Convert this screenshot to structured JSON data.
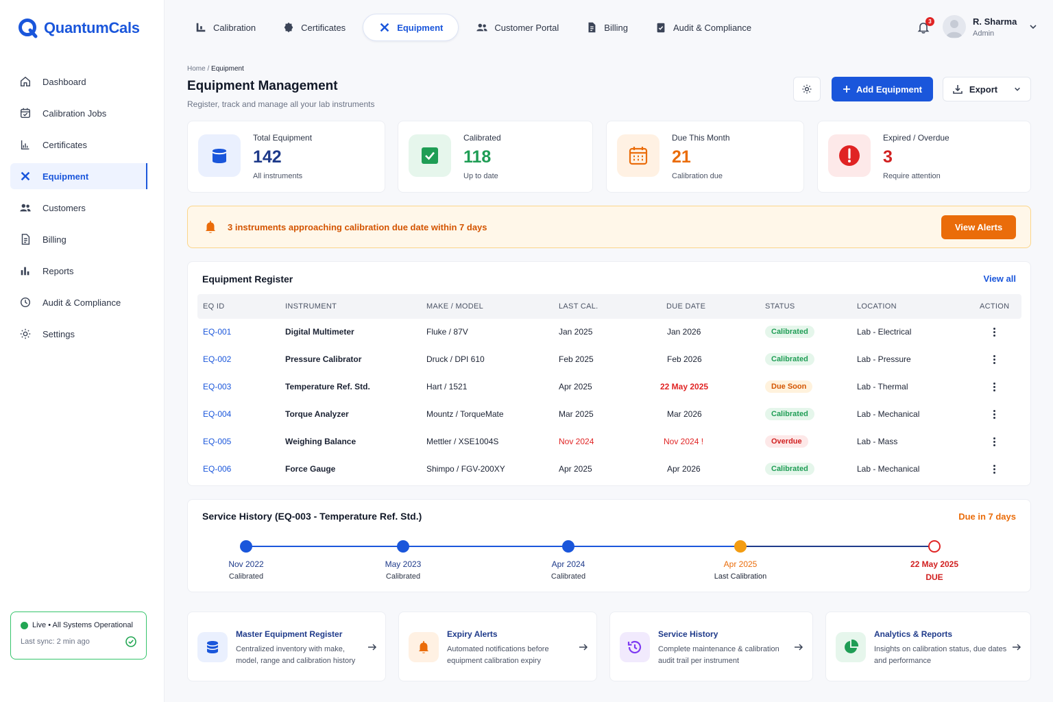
{
  "brand": {
    "name": "QuantumCals",
    "color": "#1a56db"
  },
  "sidebar": {
    "items": [
      {
        "label": "Dashboard",
        "icon": "home-icon"
      },
      {
        "label": "Calibration Jobs",
        "icon": "calendar-check-icon"
      },
      {
        "label": "Certificates",
        "icon": "certificate-icon"
      },
      {
        "label": "Equipment",
        "icon": "tools-icon",
        "active": true
      },
      {
        "label": "Customers",
        "icon": "users-icon"
      },
      {
        "label": "Billing",
        "icon": "invoice-icon"
      },
      {
        "label": "Reports",
        "icon": "bar-chart-icon"
      },
      {
        "label": "Audit & Compliance",
        "icon": "shield-icon"
      },
      {
        "label": "Settings",
        "icon": "gear-icon"
      }
    ],
    "status": {
      "text": "Live • All Systems Operational",
      "sync": "Last sync: 2 min ago"
    }
  },
  "topnav": {
    "tabs": [
      {
        "label": "Calibration",
        "icon": "gauge-icon"
      },
      {
        "label": "Certificates",
        "icon": "badge-icon"
      },
      {
        "label": "Equipment",
        "icon": "tools-icon",
        "active": true
      },
      {
        "label": "Customer Portal",
        "icon": "users-icon"
      },
      {
        "label": "Billing",
        "icon": "invoice-icon"
      },
      {
        "label": "Audit & Compliance",
        "icon": "clipboard-check-icon"
      }
    ],
    "notifications": "3",
    "user": {
      "name": "R. Sharma",
      "role": "Admin"
    }
  },
  "header": {
    "breadcrumb_home": "Home",
    "breadcrumb_sep": "/",
    "breadcrumb_current": "Equipment",
    "title": "Equipment Management",
    "subtitle": "Register, track and manage all your lab instruments",
    "add_label": "Add Equipment",
    "export_label": "Export"
  },
  "stats": [
    {
      "label": "Total Equipment",
      "value": "142",
      "sub": "All instruments",
      "color": "#1e3a8a"
    },
    {
      "label": "Calibrated",
      "value": "118",
      "sub": "Up to date",
      "color": "#1f9d55"
    },
    {
      "label": "Due This Month",
      "value": "21",
      "sub": "Calibration due",
      "color": "#ea6c0a"
    },
    {
      "label": "Expired / Overdue",
      "value": "3",
      "sub": "Require attention",
      "color": "#d12020"
    }
  ],
  "alert": {
    "text": "3 instruments approaching calibration due date within 7 days",
    "button": "View Alerts"
  },
  "register": {
    "title": "Equipment Register",
    "view_all": "View all",
    "columns": [
      "EQ ID",
      "INSTRUMENT",
      "MAKE / MODEL",
      "LAST CAL.",
      "DUE DATE",
      "STATUS",
      "LOCATION",
      "ACTION"
    ],
    "rows": [
      {
        "id": "EQ-001",
        "instrument": "Digital Multimeter",
        "make": "Fluke / 87V",
        "last": "Jan 2025",
        "due": "Jan 2026",
        "status": "Calibrated",
        "location": "Lab - Electrical"
      },
      {
        "id": "EQ-002",
        "instrument": "Pressure Calibrator",
        "make": "Druck / DPI 610",
        "last": "Feb 2025",
        "due": "Feb 2026",
        "status": "Calibrated",
        "location": "Lab - Pressure"
      },
      {
        "id": "EQ-003",
        "instrument": "Temperature Ref. Std.",
        "make": "Hart / 1521",
        "last": "Apr 2025",
        "due": "22 May 2025",
        "status": "Due Soon",
        "location": "Lab - Thermal"
      },
      {
        "id": "EQ-004",
        "instrument": "Torque Analyzer",
        "make": "Mountz / TorqueMate",
        "last": "Mar 2025",
        "due": "Mar 2026",
        "status": "Calibrated",
        "location": "Lab - Mechanical"
      },
      {
        "id": "EQ-005",
        "instrument": "Weighing Balance",
        "make": "Mettler / XSE1004S",
        "last": "Nov 2024",
        "due": "Nov 2024 !",
        "status": "Overdue",
        "location": "Lab - Mass"
      },
      {
        "id": "EQ-006",
        "instrument": "Force Gauge",
        "make": "Shimpo / FGV-200XY",
        "last": "Apr 2025",
        "due": "Apr 2026",
        "status": "Calibrated",
        "location": "Lab - Mechanical"
      }
    ]
  },
  "history": {
    "title": "Service History (EQ-003 - Temperature Ref. Std.)",
    "due_label": "Due in 7 days",
    "events": [
      {
        "date": "Nov 2022",
        "label": "Calibrated"
      },
      {
        "date": "May 2023",
        "label": "Calibrated"
      },
      {
        "date": "Apr 2024",
        "label": "Calibrated"
      },
      {
        "date": "Apr 2025",
        "label": "Last Calibration"
      },
      {
        "date": "22 May 2025",
        "label": "DUE"
      }
    ]
  },
  "features": [
    {
      "title": "Master Equipment Register",
      "line1": "Centralized inventory with make,",
      "line2": "model, range and calibration history",
      "icon": "database-icon"
    },
    {
      "title": "Expiry Alerts",
      "line1": "Automated notifications before",
      "line2": "equipment calibration expiry",
      "icon": "bell-icon"
    },
    {
      "title": "Service History",
      "line1": "Complete maintenance & calibration",
      "line2": "audit trail per instrument",
      "icon": "history-icon"
    },
    {
      "title": "Analytics & Reports",
      "line1": "Insights on calibration status, due dates",
      "line2": "and performance",
      "icon": "pie-chart-icon"
    }
  ]
}
